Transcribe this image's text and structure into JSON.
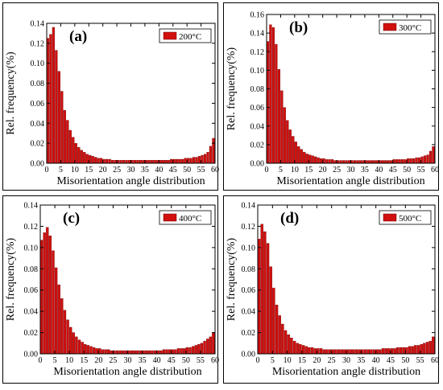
{
  "chart_data": [
    {
      "type": "bar",
      "panel_label": "(a)",
      "legend": "200°C",
      "legend_position": "top-right",
      "xlabel": "Misorientation angle distribution",
      "ylabel": "Rel. frequency(%)",
      "xlim": [
        0,
        60
      ],
      "ylim": [
        0,
        0.14
      ],
      "xticks": [
        0,
        5,
        10,
        15,
        20,
        25,
        30,
        35,
        40,
        45,
        50,
        55,
        60
      ],
      "yticks": [
        0.0,
        0.02,
        0.04,
        0.06,
        0.08,
        0.1,
        0.12,
        0.14
      ],
      "bin_width": 1,
      "x": [
        1,
        2,
        3,
        4,
        5,
        6,
        7,
        8,
        9,
        10,
        11,
        12,
        13,
        14,
        15,
        16,
        17,
        18,
        19,
        20,
        21,
        22,
        23,
        24,
        25,
        26,
        27,
        28,
        29,
        30,
        31,
        32,
        33,
        34,
        35,
        36,
        37,
        38,
        39,
        40,
        41,
        42,
        43,
        44,
        45,
        46,
        47,
        48,
        49,
        50,
        51,
        52,
        53,
        54,
        55,
        56,
        57,
        58,
        59,
        60
      ],
      "values": [
        0.125,
        0.129,
        0.136,
        0.113,
        0.092,
        0.072,
        0.053,
        0.043,
        0.033,
        0.026,
        0.02,
        0.016,
        0.013,
        0.011,
        0.009,
        0.008,
        0.007,
        0.006,
        0.005,
        0.005,
        0.004,
        0.004,
        0.004,
        0.003,
        0.003,
        0.003,
        0.003,
        0.003,
        0.003,
        0.003,
        0.003,
        0.003,
        0.003,
        0.003,
        0.003,
        0.003,
        0.003,
        0.003,
        0.003,
        0.003,
        0.003,
        0.003,
        0.003,
        0.003,
        0.004,
        0.004,
        0.004,
        0.004,
        0.004,
        0.005,
        0.005,
        0.005,
        0.006,
        0.006,
        0.007,
        0.008,
        0.009,
        0.011,
        0.017,
        0.025
      ],
      "bar_color": "#d10f0f"
    },
    {
      "type": "bar",
      "panel_label": "(b)",
      "legend": "300°C",
      "legend_position": "top-right",
      "xlabel": "Misorientation angle distribution",
      "ylabel": "Rel. frequency(%)",
      "xlim": [
        0,
        60
      ],
      "ylim": [
        0,
        0.16
      ],
      "xticks": [
        0,
        5,
        10,
        15,
        20,
        25,
        30,
        35,
        40,
        45,
        50,
        55,
        60
      ],
      "yticks": [
        0.0,
        0.02,
        0.04,
        0.06,
        0.08,
        0.1,
        0.12,
        0.14,
        0.16
      ],
      "bin_width": 1,
      "x": [
        1,
        2,
        3,
        4,
        5,
        6,
        7,
        8,
        9,
        10,
        11,
        12,
        13,
        14,
        15,
        16,
        17,
        18,
        19,
        20,
        21,
        22,
        23,
        24,
        25,
        26,
        27,
        28,
        29,
        30,
        31,
        32,
        33,
        34,
        35,
        36,
        37,
        38,
        39,
        40,
        41,
        42,
        43,
        44,
        45,
        46,
        47,
        48,
        49,
        50,
        51,
        52,
        53,
        54,
        55,
        56,
        57,
        58,
        59,
        60
      ],
      "values": [
        0.131,
        0.149,
        0.146,
        0.128,
        0.101,
        0.078,
        0.06,
        0.046,
        0.036,
        0.029,
        0.023,
        0.018,
        0.015,
        0.012,
        0.01,
        0.009,
        0.008,
        0.007,
        0.006,
        0.005,
        0.005,
        0.004,
        0.004,
        0.004,
        0.003,
        0.003,
        0.003,
        0.003,
        0.003,
        0.003,
        0.003,
        0.003,
        0.003,
        0.003,
        0.003,
        0.003,
        0.003,
        0.003,
        0.003,
        0.003,
        0.003,
        0.003,
        0.003,
        0.003,
        0.003,
        0.004,
        0.004,
        0.004,
        0.004,
        0.004,
        0.005,
        0.005,
        0.005,
        0.006,
        0.006,
        0.007,
        0.008,
        0.009,
        0.013,
        0.018
      ],
      "bar_color": "#d10f0f"
    },
    {
      "type": "bar",
      "panel_label": "(c)",
      "legend": "400°C",
      "legend_position": "top-right",
      "xlabel": "Misorientation angle distribution",
      "ylabel": "Rel. frequency(%)",
      "xlim": [
        0,
        60
      ],
      "ylim": [
        0,
        0.14
      ],
      "xticks": [
        0,
        5,
        10,
        15,
        20,
        25,
        30,
        35,
        40,
        45,
        50,
        55,
        60
      ],
      "yticks": [
        0.0,
        0.02,
        0.04,
        0.06,
        0.08,
        0.1,
        0.12,
        0.14
      ],
      "bin_width": 1,
      "x": [
        1,
        2,
        3,
        4,
        5,
        6,
        7,
        8,
        9,
        10,
        11,
        12,
        13,
        14,
        15,
        16,
        17,
        18,
        19,
        20,
        21,
        22,
        23,
        24,
        25,
        26,
        27,
        28,
        29,
        30,
        31,
        32,
        33,
        34,
        35,
        36,
        37,
        38,
        39,
        40,
        41,
        42,
        43,
        44,
        45,
        46,
        47,
        48,
        49,
        50,
        51,
        52,
        53,
        54,
        55,
        56,
        57,
        58,
        59,
        60
      ],
      "values": [
        0.107,
        0.114,
        0.119,
        0.111,
        0.097,
        0.081,
        0.065,
        0.052,
        0.041,
        0.032,
        0.025,
        0.02,
        0.016,
        0.013,
        0.011,
        0.009,
        0.008,
        0.007,
        0.006,
        0.005,
        0.005,
        0.004,
        0.004,
        0.004,
        0.003,
        0.003,
        0.003,
        0.003,
        0.003,
        0.003,
        0.003,
        0.003,
        0.003,
        0.003,
        0.003,
        0.003,
        0.003,
        0.003,
        0.003,
        0.003,
        0.003,
        0.003,
        0.004,
        0.004,
        0.004,
        0.004,
        0.004,
        0.005,
        0.005,
        0.005,
        0.006,
        0.006,
        0.007,
        0.008,
        0.009,
        0.01,
        0.012,
        0.014,
        0.016,
        0.02
      ],
      "bar_color": "#d10f0f"
    },
    {
      "type": "bar",
      "panel_label": "(d)",
      "legend": "500°C",
      "legend_position": "top-right",
      "xlabel": "Misorientation angle distribution",
      "ylabel": "Rel. frequency(%)",
      "xlim": [
        0,
        60
      ],
      "ylim": [
        0,
        0.14
      ],
      "xticks": [
        0,
        5,
        10,
        15,
        20,
        25,
        30,
        35,
        40,
        45,
        50,
        55,
        60
      ],
      "yticks": [
        0.0,
        0.02,
        0.04,
        0.06,
        0.08,
        0.1,
        0.12,
        0.14
      ],
      "bin_width": 1,
      "x": [
        1,
        2,
        3,
        4,
        5,
        6,
        7,
        8,
        9,
        10,
        11,
        12,
        13,
        14,
        15,
        16,
        17,
        18,
        19,
        20,
        21,
        22,
        23,
        24,
        25,
        26,
        27,
        28,
        29,
        30,
        31,
        32,
        33,
        34,
        35,
        36,
        37,
        38,
        39,
        40,
        41,
        42,
        43,
        44,
        45,
        46,
        47,
        48,
        49,
        50,
        51,
        52,
        53,
        54,
        55,
        56,
        57,
        58,
        59,
        60
      ],
      "values": [
        0.108,
        0.122,
        0.115,
        0.104,
        0.082,
        0.062,
        0.046,
        0.036,
        0.028,
        0.022,
        0.018,
        0.015,
        0.012,
        0.01,
        0.009,
        0.008,
        0.007,
        0.006,
        0.006,
        0.005,
        0.005,
        0.005,
        0.004,
        0.004,
        0.004,
        0.004,
        0.004,
        0.004,
        0.004,
        0.004,
        0.004,
        0.004,
        0.004,
        0.004,
        0.004,
        0.004,
        0.004,
        0.004,
        0.004,
        0.004,
        0.004,
        0.004,
        0.005,
        0.005,
        0.005,
        0.005,
        0.005,
        0.006,
        0.006,
        0.006,
        0.006,
        0.007,
        0.007,
        0.008,
        0.008,
        0.009,
        0.01,
        0.011,
        0.012,
        0.016
      ],
      "bar_color": "#d10f0f"
    }
  ]
}
